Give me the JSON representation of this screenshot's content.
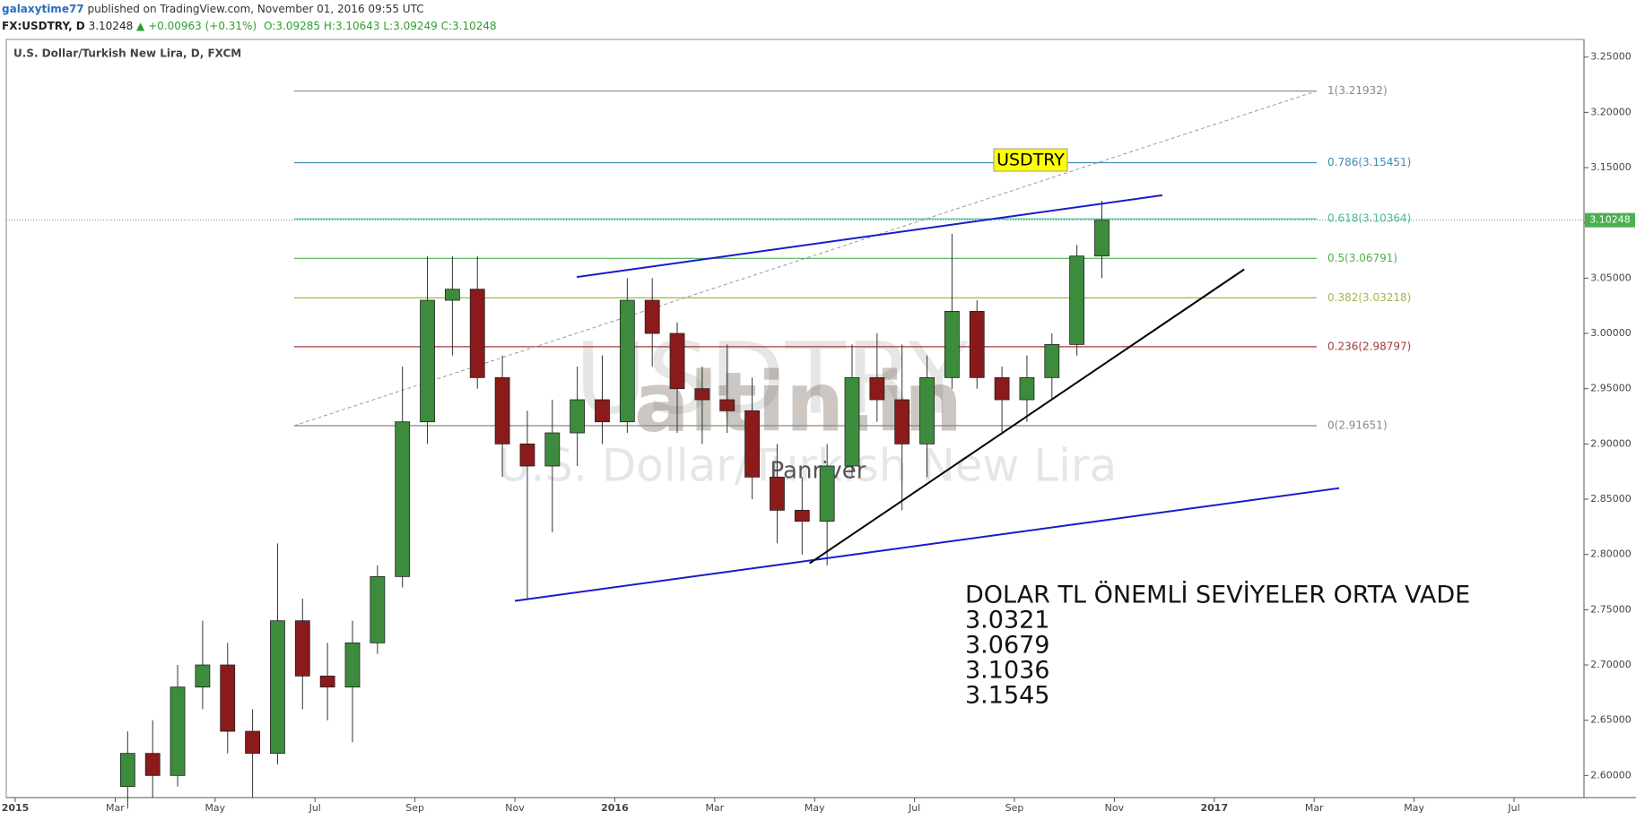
{
  "header": {
    "user": "galaxytime77",
    "published": "published on TradingView.com, November 01, 2016 09:55 UTC",
    "symbol": "FX:USDTRY, D",
    "price": "3.10248",
    "change": "▲ +0.00963 (+0.31%)",
    "open": "O:3.09285",
    "high": "H:3.10643",
    "low": "L:3.09249",
    "close": "C:3.10248"
  },
  "chart_data": {
    "type": "candlestick",
    "title": "U.S. Dollar/Turkish New Lira, D, FXCM",
    "x": [
      2.25,
      2.75,
      3.25,
      3.75,
      4.25,
      4.75,
      5.25,
      5.75,
      6.25,
      6.75,
      7.25,
      7.75,
      8.25,
      8.75,
      9.25,
      9.75,
      10.25,
      10.75,
      11.25,
      11.75,
      12.25,
      12.75,
      13.25,
      13.75,
      14.25,
      14.75,
      15.25,
      15.75,
      16.25,
      16.75,
      17.25,
      17.75,
      18.25,
      18.75,
      19.25,
      19.75,
      20.25,
      20.75,
      21.25,
      21.75
    ],
    "open": [
      2.59,
      2.62,
      2.6,
      2.68,
      2.7,
      2.64,
      2.62,
      2.74,
      2.69,
      2.68,
      2.72,
      2.78,
      2.92,
      3.03,
      3.04,
      2.96,
      2.9,
      2.88,
      2.91,
      2.94,
      2.92,
      3.03,
      3.0,
      2.95,
      2.94,
      2.93,
      2.87,
      2.84,
      2.83,
      2.88,
      2.96,
      2.94,
      2.9,
      2.96,
      3.02,
      2.96,
      2.94,
      2.96,
      2.99,
      3.07
    ],
    "high": [
      2.64,
      2.65,
      2.7,
      2.74,
      2.72,
      2.66,
      2.81,
      2.76,
      2.72,
      2.74,
      2.79,
      2.97,
      3.07,
      3.07,
      3.07,
      2.98,
      2.93,
      2.94,
      2.97,
      2.98,
      3.05,
      3.05,
      3.01,
      2.97,
      2.99,
      2.96,
      2.9,
      2.87,
      2.9,
      2.99,
      3.0,
      2.99,
      2.98,
      3.09,
      3.03,
      2.97,
      2.98,
      3.0,
      3.08,
      3.12
    ],
    "low": [
      2.57,
      2.58,
      2.59,
      2.66,
      2.62,
      2.58,
      2.61,
      2.66,
      2.65,
      2.63,
      2.71,
      2.77,
      2.9,
      2.98,
      2.95,
      2.87,
      2.76,
      2.82,
      2.88,
      2.9,
      2.91,
      2.97,
      2.91,
      2.9,
      2.91,
      2.85,
      2.81,
      2.8,
      2.79,
      2.87,
      2.92,
      2.84,
      2.87,
      2.95,
      2.95,
      2.91,
      2.92,
      2.94,
      2.98,
      3.05
    ],
    "close": [
      2.62,
      2.6,
      2.68,
      2.7,
      2.64,
      2.62,
      2.74,
      2.69,
      2.68,
      2.72,
      2.78,
      2.92,
      3.03,
      3.04,
      2.96,
      2.9,
      2.88,
      2.91,
      2.94,
      2.92,
      3.03,
      3.0,
      2.95,
      2.94,
      2.93,
      2.87,
      2.84,
      2.83,
      2.88,
      2.96,
      2.94,
      2.9,
      2.96,
      3.02,
      2.96,
      2.94,
      2.96,
      2.99,
      3.07,
      3.10248
    ],
    "up_color": "#3d8b3d",
    "down_color": "#8b1a1a",
    "xlim": [
      -0.18,
      31.4
    ],
    "ylim": [
      2.58,
      3.266
    ],
    "grid": false,
    "xticks": [
      {
        "value": 0,
        "label": "2015"
      },
      {
        "value": 2,
        "label": "Mar"
      },
      {
        "value": 4,
        "label": "May"
      },
      {
        "value": 6,
        "label": "Jul"
      },
      {
        "value": 8,
        "label": "Sep"
      },
      {
        "value": 10,
        "label": "Nov"
      },
      {
        "value": 12,
        "label": "2016"
      },
      {
        "value": 14,
        "label": "Mar"
      },
      {
        "value": 16,
        "label": "May"
      },
      {
        "value": 18,
        "label": "Jul"
      },
      {
        "value": 20,
        "label": "Sep"
      },
      {
        "value": 22,
        "label": "Nov"
      },
      {
        "value": 24,
        "label": "2017"
      },
      {
        "value": 26,
        "label": "Mar"
      },
      {
        "value": 28,
        "label": "May"
      },
      {
        "value": 30,
        "label": "Jul"
      }
    ],
    "yticks": [
      {
        "value": 2.6,
        "label": "2.60000"
      },
      {
        "value": 2.65,
        "label": "2.65000"
      },
      {
        "value": 2.7,
        "label": "2.70000"
      },
      {
        "value": 2.75,
        "label": "2.75000"
      },
      {
        "value": 2.8,
        "label": "2.80000"
      },
      {
        "value": 2.85,
        "label": "2.85000"
      },
      {
        "value": 2.9,
        "label": "2.90000"
      },
      {
        "value": 2.95,
        "label": "2.95000"
      },
      {
        "value": 3.0,
        "label": "3.00000"
      },
      {
        "value": 3.05,
        "label": "3.05000"
      },
      {
        "value": 3.1,
        "label": "3.10000"
      },
      {
        "value": 3.15,
        "label": "3.15000"
      },
      {
        "value": 3.2,
        "label": "3.20000"
      },
      {
        "value": 3.25,
        "label": "3.25000"
      }
    ],
    "last_price": {
      "value": 3.10248,
      "label": "3.10248",
      "color": "#4caf50"
    },
    "fib": {
      "x": [
        5.58,
        26.05
      ],
      "levels": [
        {
          "value": 3.21932,
          "label": "1(3.21932)",
          "color": "#888888"
        },
        {
          "value": 3.15451,
          "label": "0.786(3.15451)",
          "color": "#3d8eb0"
        },
        {
          "value": 3.10364,
          "label": "0.618(3.10364)",
          "color": "#4db6a0"
        },
        {
          "value": 3.06791,
          "label": "0.5(3.06791)",
          "color": "#4caf50"
        },
        {
          "value": 3.03218,
          "label": "0.382(3.03218)",
          "color": "#a6b54a"
        },
        {
          "value": 2.98797,
          "label": "0.236(2.98797)",
          "color": "#a33a3a"
        },
        {
          "value": 2.91651,
          "label": "0(2.91651)",
          "color": "#888888"
        }
      ]
    },
    "trendlines": [
      {
        "x": [
          11.24,
          22.96
        ],
        "y": [
          3.051,
          3.125
        ],
        "color": "#1a1acc"
      },
      {
        "x": [
          10.0,
          26.5
        ],
        "y": [
          2.758,
          2.86
        ],
        "color": "#1a1acc"
      },
      {
        "x": [
          15.9,
          24.6
        ],
        "y": [
          2.792,
          3.058
        ],
        "color": "#000000"
      }
    ],
    "annotations": {
      "tag": "USDTRY",
      "watermark_symbol": "USDTRY",
      "watermark_name": "U.S. Dollar/Turkish New Lira",
      "logo": "altin.in",
      "author": "Panriver",
      "note": [
        "DOLAR TL ÖNEMLİ SEVİYELER ORTA VADE",
        "3.0321",
        "3.0679",
        "3.1036",
        "3.1545"
      ]
    }
  }
}
